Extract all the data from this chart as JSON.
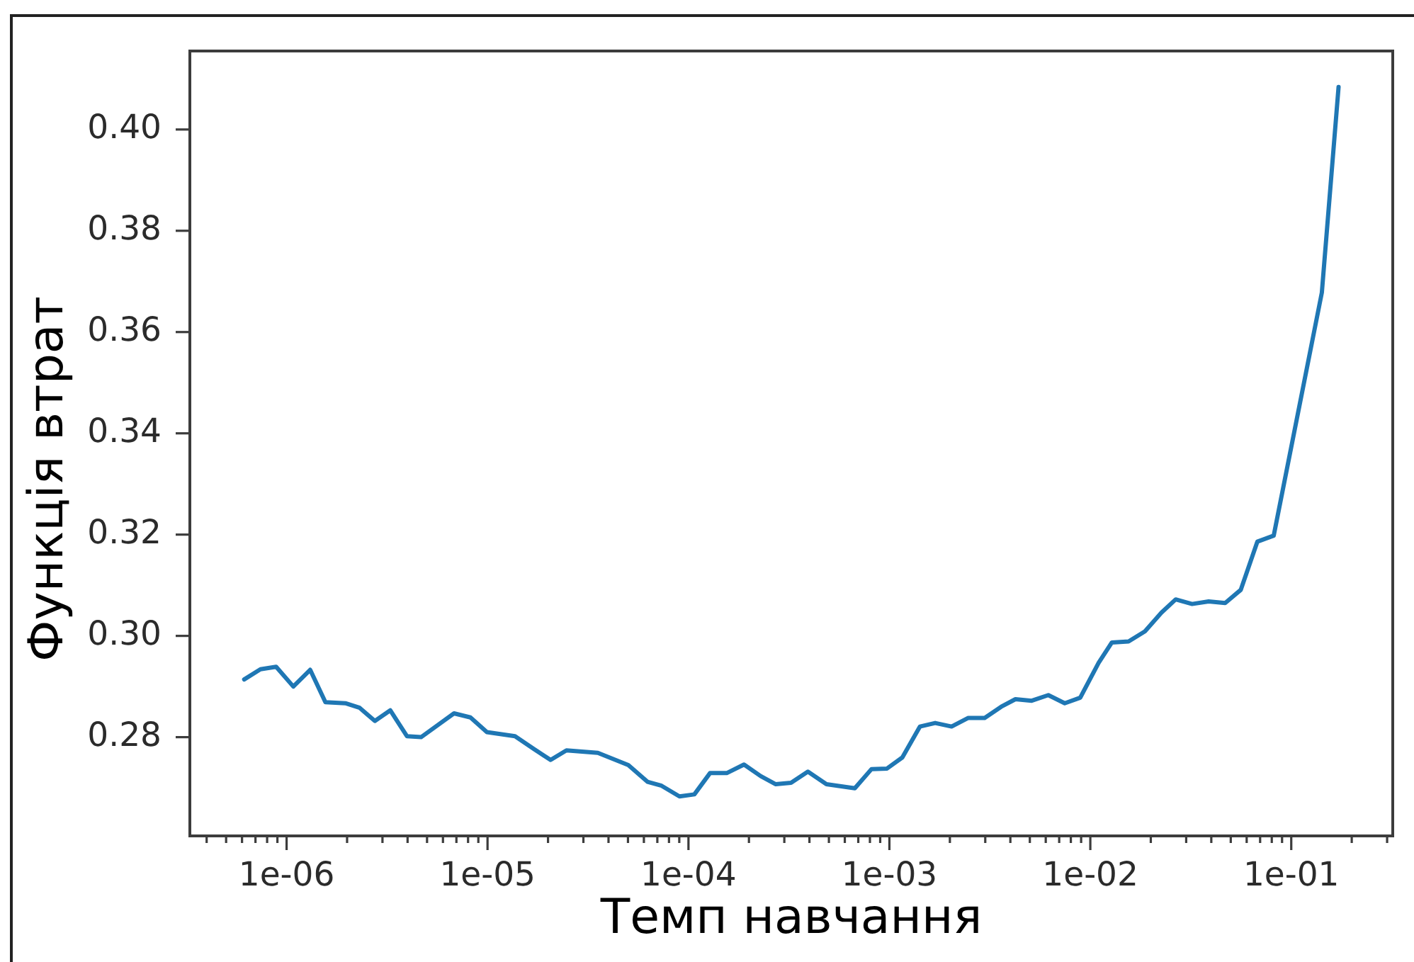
{
  "chart_data": {
    "type": "line",
    "xlabel": "Темп навчання",
    "ylabel": "Функція втрат",
    "log": "x",
    "color": "#1f77b4",
    "x": [
      6.15e-07,
      7.41e-07,
      8.87e-07,
      1.08e-06,
      1.31e-06,
      1.56e-06,
      1.96e-06,
      2.31e-06,
      2.75e-06,
      3.28e-06,
      3.97e-06,
      4.67e-06,
      6.81e-06,
      8.22e-06,
      9.93e-06,
      1.37e-05,
      1.71e-05,
      2.06e-05,
      2.47e-05,
      3.54e-05,
      5.02e-05,
      6.25e-05,
      7.35e-05,
      9.02e-05,
      0.000107,
      0.000128,
      0.000155,
      0.000189,
      0.000229,
      0.000272,
      0.000324,
      0.000393,
      0.000486,
      0.000673,
      0.000815,
      0.000973,
      0.00116,
      0.00142,
      0.00169,
      0.00204,
      0.00247,
      0.00298,
      0.0036,
      0.00424,
      0.00511,
      0.00618,
      0.00746,
      0.00891,
      0.011,
      0.0128,
      0.0155,
      0.0187,
      0.0226,
      0.0266,
      0.0321,
      0.0388,
      0.0469,
      0.0561,
      0.0678,
      0.0818,
      0.142,
      0.172
    ],
    "values": [
      0.2914,
      0.2934,
      0.2939,
      0.29,
      0.2933,
      0.2869,
      0.2867,
      0.2858,
      0.2832,
      0.2853,
      0.2802,
      0.28,
      0.2847,
      0.2839,
      0.281,
      0.2802,
      0.2776,
      0.2755,
      0.2774,
      0.2769,
      0.2745,
      0.2712,
      0.2704,
      0.2683,
      0.2687,
      0.2729,
      0.2729,
      0.2746,
      0.2723,
      0.2707,
      0.271,
      0.2732,
      0.2707,
      0.2699,
      0.2737,
      0.2738,
      0.276,
      0.2821,
      0.2828,
      0.2821,
      0.2838,
      0.2838,
      0.286,
      0.2875,
      0.2872,
      0.2883,
      0.2867,
      0.2878,
      0.2947,
      0.2987,
      0.2989,
      0.3009,
      0.3046,
      0.3072,
      0.3063,
      0.3068,
      0.3065,
      0.3091,
      0.3186,
      0.3198,
      0.3678,
      0.4084
    ],
    "xlim": [
      3.3e-07,
      0.32
    ],
    "ylim": [
      0.2605,
      0.4155
    ],
    "xticks": [
      {
        "value": 4e-07,
        "label": null
      },
      {
        "value": 5e-07,
        "label": null
      },
      {
        "value": 6e-07,
        "label": null
      },
      {
        "value": 7e-07,
        "label": null
      },
      {
        "value": 8e-07,
        "label": null
      },
      {
        "value": 9e-07,
        "label": null
      },
      {
        "value": 1e-06,
        "label": "1e-06"
      },
      {
        "value": 2e-06,
        "label": null
      },
      {
        "value": 3e-06,
        "label": null
      },
      {
        "value": 4e-06,
        "label": null
      },
      {
        "value": 5e-06,
        "label": null
      },
      {
        "value": 6e-06,
        "label": null
      },
      {
        "value": 7e-06,
        "label": null
      },
      {
        "value": 8e-06,
        "label": null
      },
      {
        "value": 9e-06,
        "label": null
      },
      {
        "value": 1e-05,
        "label": "1e-05"
      },
      {
        "value": 2e-05,
        "label": null
      },
      {
        "value": 3e-05,
        "label": null
      },
      {
        "value": 4e-05,
        "label": null
      },
      {
        "value": 5e-05,
        "label": null
      },
      {
        "value": 6e-05,
        "label": null
      },
      {
        "value": 7e-05,
        "label": null
      },
      {
        "value": 8e-05,
        "label": null
      },
      {
        "value": 9e-05,
        "label": null
      },
      {
        "value": 0.0001,
        "label": "1e-04"
      },
      {
        "value": 0.0002,
        "label": null
      },
      {
        "value": 0.0003,
        "label": null
      },
      {
        "value": 0.0004,
        "label": null
      },
      {
        "value": 0.0005,
        "label": null
      },
      {
        "value": 0.0006,
        "label": null
      },
      {
        "value": 0.0007,
        "label": null
      },
      {
        "value": 0.0008,
        "label": null
      },
      {
        "value": 0.0009,
        "label": null
      },
      {
        "value": 0.001,
        "label": "1e-03"
      },
      {
        "value": 0.002,
        "label": null
      },
      {
        "value": 0.003,
        "label": null
      },
      {
        "value": 0.004,
        "label": null
      },
      {
        "value": 0.005,
        "label": null
      },
      {
        "value": 0.006,
        "label": null
      },
      {
        "value": 0.007,
        "label": null
      },
      {
        "value": 0.008,
        "label": null
      },
      {
        "value": 0.009,
        "label": null
      },
      {
        "value": 0.01,
        "label": "1e-02"
      },
      {
        "value": 0.02,
        "label": null
      },
      {
        "value": 0.03,
        "label": null
      },
      {
        "value": 0.04,
        "label": null
      },
      {
        "value": 0.05,
        "label": null
      },
      {
        "value": 0.06,
        "label": null
      },
      {
        "value": 0.07,
        "label": null
      },
      {
        "value": 0.08,
        "label": null
      },
      {
        "value": 0.09,
        "label": null
      },
      {
        "value": 0.1,
        "label": "1e-01"
      },
      {
        "value": 0.2,
        "label": null
      },
      {
        "value": 0.3,
        "label": null
      }
    ],
    "yticks": [
      0.28,
      {
        "value": 0.3,
        "label": "0.30"
      },
      0.32,
      0.34,
      0.36,
      0.38,
      {
        "value": 0.4,
        "label": "0.40"
      }
    ]
  }
}
